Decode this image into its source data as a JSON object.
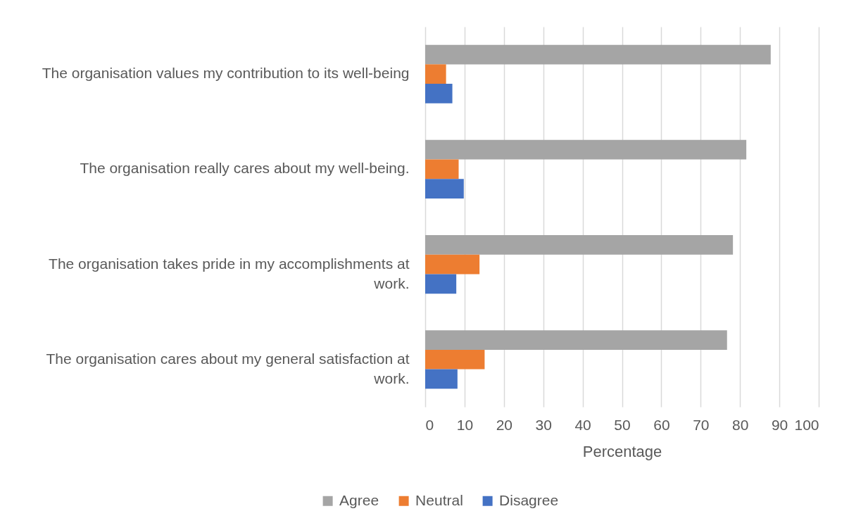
{
  "chart_data": {
    "type": "bar",
    "orientation": "horizontal",
    "categories": [
      "The organisation values my contribution to its well-being",
      "The organisation really cares about my well-being.",
      "The organisation takes pride in my accomplishments at work.",
      "The organisation cares about my general satisfaction at work."
    ],
    "series": [
      {
        "name": "Agree",
        "color": "#a5a5a5",
        "values": [
          87.8,
          81.6,
          78.2,
          76.7
        ]
      },
      {
        "name": "Neutral",
        "color": "#ed7d31",
        "values": [
          5.3,
          8.5,
          13.8,
          15.1
        ]
      },
      {
        "name": "Disagree",
        "color": "#4472c4",
        "values": [
          6.9,
          9.8,
          7.9,
          8.2
        ]
      }
    ],
    "xlabel": "Percentage",
    "xlim": [
      0,
      100
    ],
    "xticks": [
      0,
      10,
      20,
      30,
      40,
      50,
      60,
      70,
      80,
      90,
      100
    ],
    "grid": "x",
    "legend": "bottom"
  }
}
